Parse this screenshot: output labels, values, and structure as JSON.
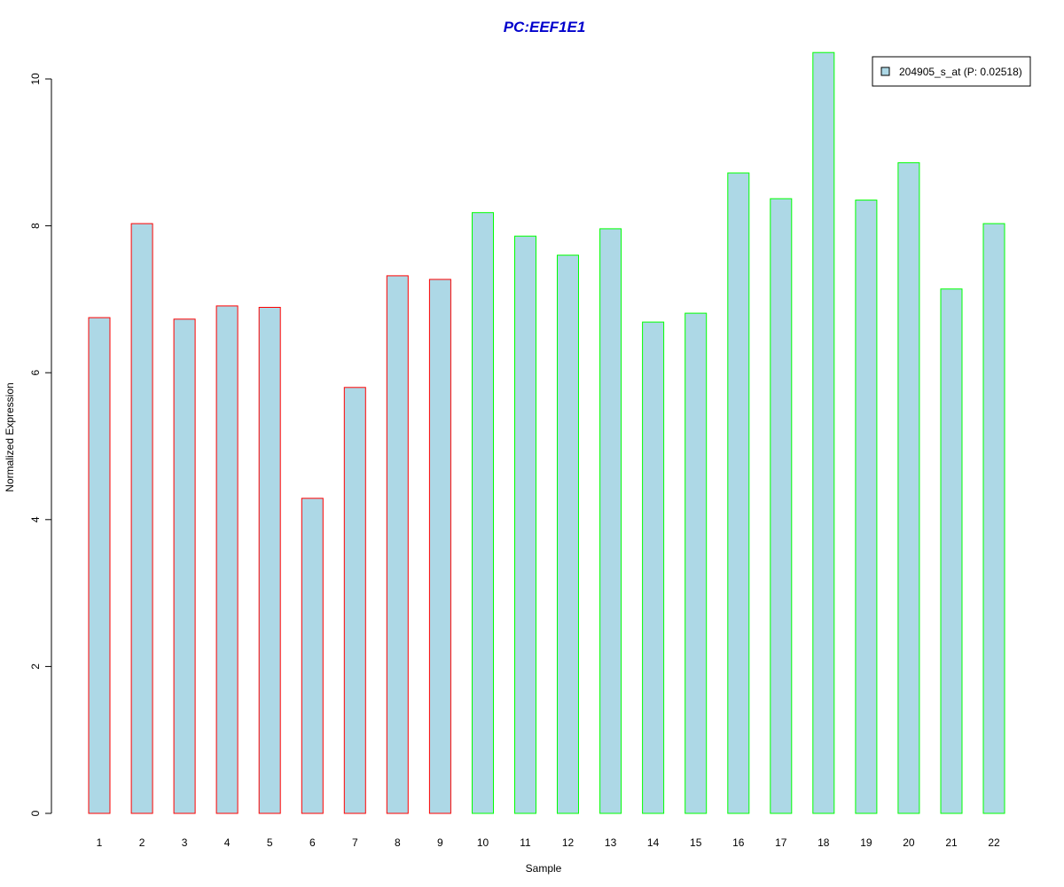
{
  "chart_data": {
    "type": "bar",
    "title": "PC:EEF1E1",
    "xlabel": "Sample",
    "ylabel": "Normalized Expression",
    "categories": [
      "1",
      "2",
      "3",
      "4",
      "5",
      "6",
      "7",
      "8",
      "9",
      "10",
      "11",
      "12",
      "13",
      "14",
      "15",
      "16",
      "17",
      "18",
      "19",
      "20",
      "21",
      "22"
    ],
    "series": [
      {
        "name": "204905_s_at (P: 0.02518)",
        "values": [
          6.75,
          8.03,
          6.73,
          6.91,
          6.89,
          4.29,
          5.8,
          7.32,
          7.27,
          8.18,
          7.86,
          7.6,
          7.96,
          6.69,
          6.81,
          8.72,
          8.37,
          10.36,
          8.35,
          8.86,
          7.14,
          8.03
        ]
      }
    ],
    "bar_border_colors": [
      "#ff0000",
      "#ff0000",
      "#ff0000",
      "#ff0000",
      "#ff0000",
      "#ff0000",
      "#ff0000",
      "#ff0000",
      "#ff0000",
      "#00ff00",
      "#00ff00",
      "#00ff00",
      "#00ff00",
      "#00ff00",
      "#00ff00",
      "#00ff00",
      "#00ff00",
      "#00ff00",
      "#00ff00",
      "#00ff00",
      "#00ff00",
      "#00ff00"
    ],
    "bar_fill_color": "#add8e6",
    "title_color": "#0000cc",
    "yticks": [
      0,
      2,
      4,
      6,
      8,
      10
    ],
    "ylim": [
      0,
      10.36
    ],
    "grid": false,
    "legend_position": "top-right"
  }
}
